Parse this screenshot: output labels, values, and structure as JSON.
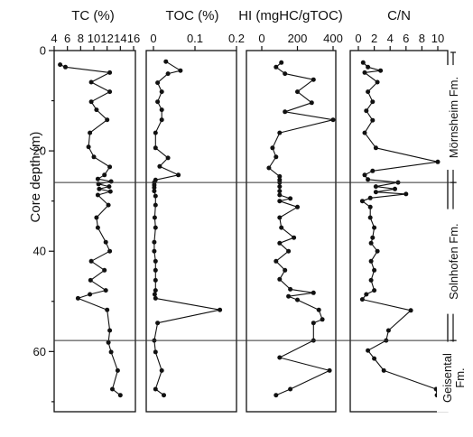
{
  "chart_data": {
    "type": "scatter",
    "y": {
      "label": "Core depth (m)",
      "range": [
        0,
        72
      ],
      "inverted": true,
      "ticks": [
        "0",
        "20",
        "40",
        "60"
      ]
    },
    "boundaries_depth": [
      26.3,
      57.8
    ],
    "formations": [
      {
        "label": "Mörnsheim Fm."
      },
      {
        "label": "Solnhofen Fm."
      },
      {
        "label": "Geisental Fm."
      }
    ],
    "panels": [
      {
        "title": "TC (%)",
        "xlim": [
          4,
          16
        ],
        "xticks": [
          "4",
          "6",
          "8",
          "10",
          "12",
          "14",
          "16"
        ],
        "points": [
          [
            4.9,
            2.8
          ],
          [
            5.7,
            3.3
          ],
          [
            12.4,
            4.4
          ],
          [
            9.6,
            6.3
          ],
          [
            12.4,
            8.2
          ],
          [
            9.6,
            10.2
          ],
          [
            10.4,
            11.8
          ],
          [
            12.0,
            13.8
          ],
          [
            9.4,
            16.4
          ],
          [
            9.2,
            19.2
          ],
          [
            10.0,
            21.2
          ],
          [
            12.4,
            23.2
          ],
          [
            11.6,
            24.8
          ],
          [
            10.6,
            25.6
          ],
          [
            12.6,
            26.1
          ],
          [
            10.7,
            26.6
          ],
          [
            12.3,
            27.1
          ],
          [
            10.8,
            27.6
          ],
          [
            12.5,
            28.1
          ],
          [
            10.6,
            28.8
          ],
          [
            12.2,
            30.8
          ],
          [
            10.4,
            33.3
          ],
          [
            10.6,
            35.3
          ],
          [
            11.8,
            38.2
          ],
          [
            12.4,
            40.0
          ],
          [
            9.6,
            42.0
          ],
          [
            11.6,
            43.8
          ],
          [
            9.5,
            45.8
          ],
          [
            11.8,
            47.8
          ],
          [
            9.4,
            48.6
          ],
          [
            7.6,
            49.4
          ],
          [
            12.0,
            51.7
          ],
          [
            12.4,
            55.8
          ],
          [
            12.2,
            58.2
          ],
          [
            12.6,
            60.1
          ],
          [
            13.6,
            63.8
          ],
          [
            12.8,
            67.5
          ],
          [
            14.0,
            68.7
          ]
        ]
      },
      {
        "title": "TOC (%)",
        "xlim": [
          0,
          0.2
        ],
        "xticks": [
          "0",
          "0.1",
          "0.2"
        ],
        "points": [
          [
            0.03,
            2.2
          ],
          [
            0.065,
            4.0
          ],
          [
            0.035,
            4.6
          ],
          [
            0.01,
            6.4
          ],
          [
            0.02,
            8.2
          ],
          [
            0.01,
            10.2
          ],
          [
            0.02,
            11.8
          ],
          [
            0.02,
            13.8
          ],
          [
            0.005,
            16.4
          ],
          [
            0.005,
            19.4
          ],
          [
            0.035,
            21.4
          ],
          [
            0.015,
            23.1
          ],
          [
            0.06,
            24.8
          ],
          [
            0.005,
            25.8
          ],
          [
            0.002,
            26.3
          ],
          [
            0.002,
            26.8
          ],
          [
            0.002,
            27.3
          ],
          [
            0.002,
            28.0
          ],
          [
            0.005,
            29.0
          ],
          [
            0.005,
            30.8
          ],
          [
            0.003,
            33.3
          ],
          [
            0.005,
            35.3
          ],
          [
            0.002,
            38.2
          ],
          [
            0.002,
            40.0
          ],
          [
            0.005,
            42.0
          ],
          [
            0.005,
            43.8
          ],
          [
            0.005,
            45.8
          ],
          [
            0.005,
            47.8
          ],
          [
            0.003,
            48.6
          ],
          [
            0.005,
            49.4
          ],
          [
            0.16,
            51.7
          ],
          [
            0.01,
            54.3
          ],
          [
            0.002,
            57.8
          ],
          [
            0.005,
            60.1
          ],
          [
            0.02,
            63.8
          ],
          [
            0.005,
            67.5
          ],
          [
            0.025,
            68.7
          ]
        ]
      },
      {
        "title": "HI (mgHC/gTOC)",
        "xlim": [
          0,
          400
        ],
        "xticks": [
          "0",
          "200",
          "400"
        ],
        "points": [
          [
            110,
            2.4
          ],
          [
            80,
            3.3
          ],
          [
            130,
            4.6
          ],
          [
            290,
            5.8
          ],
          [
            200,
            8.2
          ],
          [
            280,
            10.4
          ],
          [
            130,
            12.2
          ],
          [
            400,
            13.8
          ],
          [
            100,
            16.4
          ],
          [
            60,
            19.4
          ],
          [
            80,
            21.2
          ],
          [
            40,
            23.4
          ],
          [
            100,
            25.1
          ],
          [
            100,
            25.8
          ],
          [
            100,
            26.3
          ],
          [
            100,
            27.1
          ],
          [
            100,
            28.0
          ],
          [
            100,
            28.8
          ],
          [
            160,
            29.5
          ],
          [
            100,
            30.0
          ],
          [
            200,
            31.2
          ],
          [
            100,
            33.3
          ],
          [
            110,
            35.3
          ],
          [
            180,
            37.3
          ],
          [
            100,
            38.4
          ],
          [
            150,
            40.0
          ],
          [
            80,
            42.0
          ],
          [
            130,
            43.8
          ],
          [
            100,
            45.6
          ],
          [
            160,
            47.6
          ],
          [
            290,
            48.3
          ],
          [
            150,
            49.0
          ],
          [
            200,
            49.7
          ],
          [
            320,
            51.7
          ],
          [
            340,
            53.6
          ],
          [
            290,
            54.3
          ],
          [
            290,
            57.8
          ],
          [
            100,
            61.2
          ],
          [
            380,
            63.8
          ],
          [
            160,
            67.5
          ],
          [
            80,
            68.7
          ]
        ]
      },
      {
        "title": "C/N",
        "xlim": [
          0,
          10
        ],
        "xticks": [
          "0",
          "2",
          "4",
          "6",
          "8",
          "10"
        ],
        "points": [
          [
            0.6,
            2.4
          ],
          [
            1.2,
            3.3
          ],
          [
            2.8,
            4.0
          ],
          [
            0.8,
            4.4
          ],
          [
            2.4,
            6.3
          ],
          [
            1.2,
            8.2
          ],
          [
            1.8,
            10.2
          ],
          [
            1.0,
            12.0
          ],
          [
            1.8,
            13.9
          ],
          [
            0.8,
            16.4
          ],
          [
            2.2,
            19.4
          ],
          [
            10.0,
            22.2
          ],
          [
            1.8,
            24.0
          ],
          [
            0.8,
            24.8
          ],
          [
            1.2,
            25.7
          ],
          [
            5.0,
            26.3
          ],
          [
            2.2,
            27.1
          ],
          [
            4.6,
            27.6
          ],
          [
            2.2,
            28.2
          ],
          [
            6.0,
            28.6
          ],
          [
            1.5,
            29.4
          ],
          [
            0.5,
            30.0
          ],
          [
            1.5,
            31.2
          ],
          [
            1.5,
            33.3
          ],
          [
            2.0,
            35.3
          ],
          [
            1.8,
            37.3
          ],
          [
            1.6,
            38.4
          ],
          [
            2.4,
            40.0
          ],
          [
            1.6,
            42.0
          ],
          [
            2.0,
            43.8
          ],
          [
            1.6,
            45.8
          ],
          [
            2.0,
            47.8
          ],
          [
            1.0,
            48.6
          ],
          [
            0.5,
            49.6
          ],
          [
            6.6,
            51.8
          ],
          [
            3.8,
            55.8
          ],
          [
            3.5,
            57.8
          ],
          [
            1.2,
            59.8
          ],
          [
            2.0,
            61.4
          ],
          [
            3.2,
            63.8
          ],
          [
            9.8,
            67.5
          ],
          [
            9.9,
            68.7
          ]
        ]
      }
    ]
  }
}
